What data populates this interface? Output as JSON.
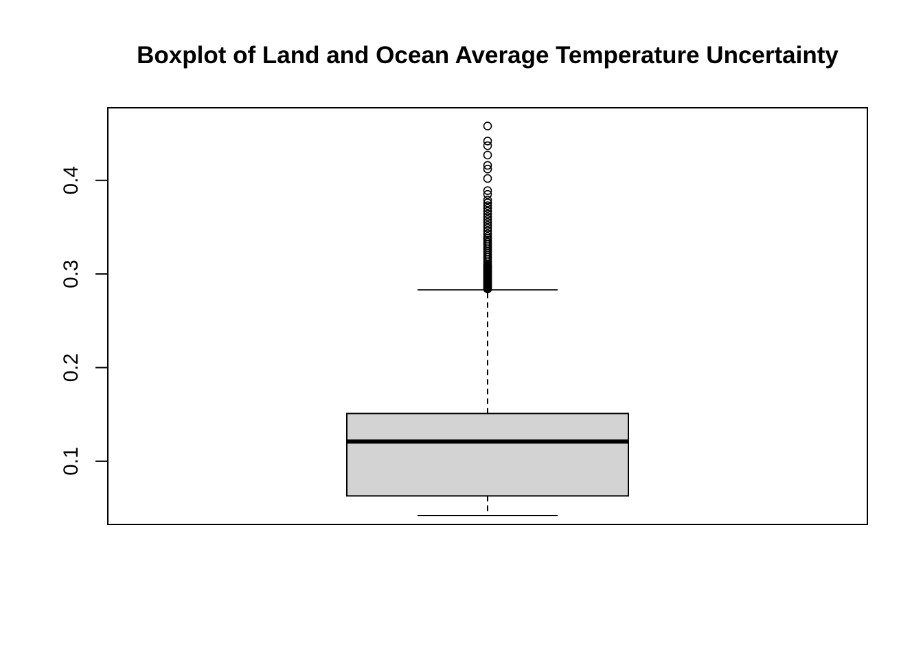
{
  "chart_data": {
    "type": "boxplot",
    "title": "Boxplot of Land and Ocean Average Temperature Uncertainty",
    "xlabel": "",
    "ylabel": "",
    "ylim": [
      0.0325,
      0.4775
    ],
    "yticks": [
      0.1,
      0.2,
      0.3,
      0.4
    ],
    "ytick_labels": [
      "0.1",
      "0.2",
      "0.3",
      "0.4"
    ],
    "grid": false,
    "box": {
      "whisker_low": 0.042,
      "q1": 0.063,
      "median": 0.121,
      "q3": 0.151,
      "whisker_high": 0.283,
      "fill": "#d3d3d3"
    },
    "outliers": [
      0.284,
      0.285,
      0.286,
      0.287,
      0.288,
      0.289,
      0.29,
      0.291,
      0.292,
      0.293,
      0.294,
      0.295,
      0.296,
      0.297,
      0.298,
      0.299,
      0.3,
      0.301,
      0.302,
      0.303,
      0.304,
      0.305,
      0.306,
      0.307,
      0.308,
      0.309,
      0.31,
      0.312,
      0.314,
      0.316,
      0.318,
      0.32,
      0.322,
      0.324,
      0.326,
      0.328,
      0.33,
      0.332,
      0.334,
      0.336,
      0.338,
      0.34,
      0.343,
      0.346,
      0.349,
      0.352,
      0.355,
      0.358,
      0.361,
      0.364,
      0.367,
      0.37,
      0.373,
      0.376,
      0.379,
      0.385,
      0.389,
      0.402,
      0.412,
      0.416,
      0.427,
      0.437,
      0.442,
      0.458
    ]
  }
}
